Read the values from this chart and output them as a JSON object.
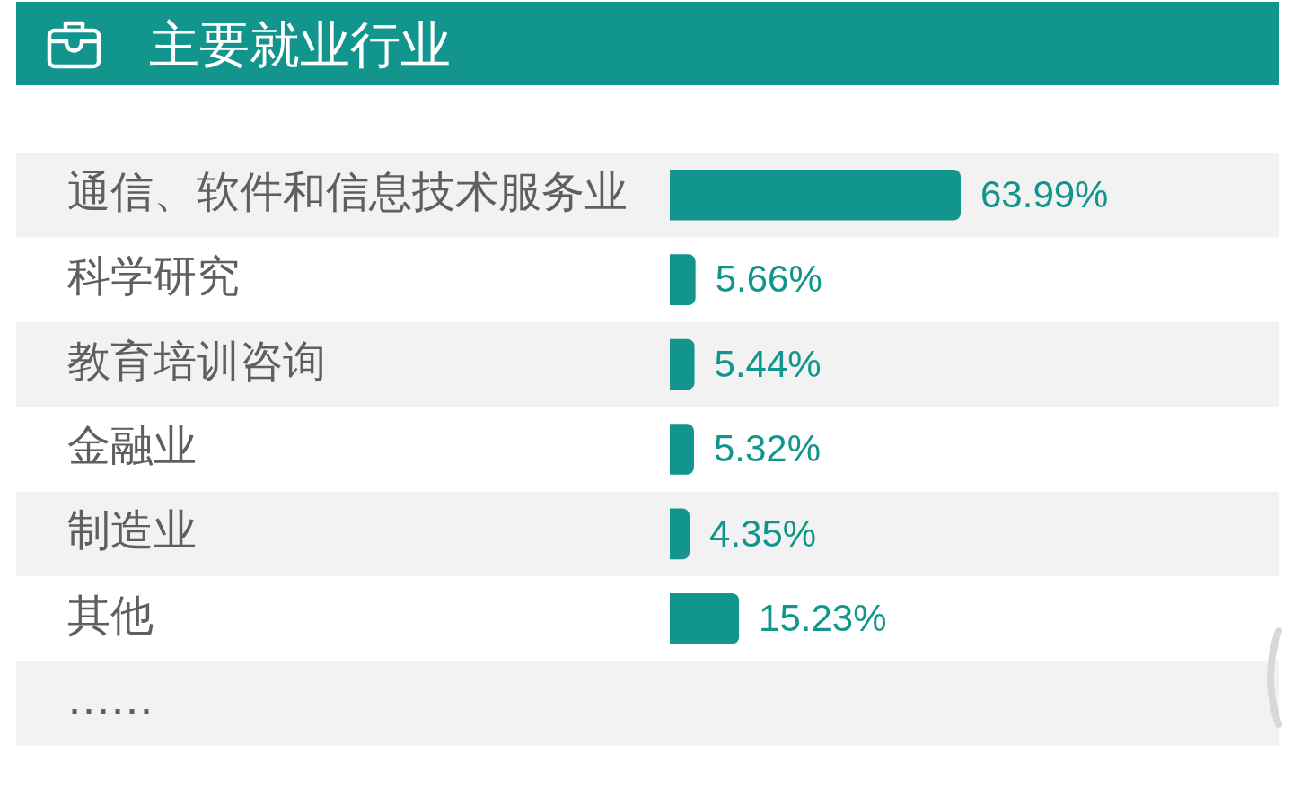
{
  "chart_data": {
    "type": "bar",
    "orientation": "horizontal",
    "title": "主要就业行业",
    "categories": [
      "通信、软件和信息技术服务业",
      "科学研究",
      "教育培训咨询",
      "金融业",
      "制造业",
      "其他",
      "……"
    ],
    "series": [
      {
        "color": "#12958c",
        "values": [
          63.99,
          5.66,
          5.44,
          5.32,
          4.35,
          15.23,
          null
        ],
        "value_labels": [
          "63.99%",
          "5.66%",
          "5.44%",
          "5.32%",
          "4.35%",
          "15.23%",
          null
        ]
      }
    ],
    "bands": [
      {
        "axis": "y",
        "from": "通信、软件和信息技术服务业",
        "to": "通信、软件和信息技术服务业",
        "color": "#f2f2f2"
      },
      {
        "axis": "y",
        "from": "教育培训咨询",
        "to": "教育培训咨询",
        "color": "#f2f2f2"
      },
      {
        "axis": "y",
        "from": "制造业",
        "to": "制造业",
        "color": "#f2f2f2"
      },
      {
        "axis": "y",
        "from": "……",
        "to": "……",
        "color": "#f2f2f2"
      }
    ],
    "tick_labels": "y",
    "grid": false,
    "legend": false
  }
}
